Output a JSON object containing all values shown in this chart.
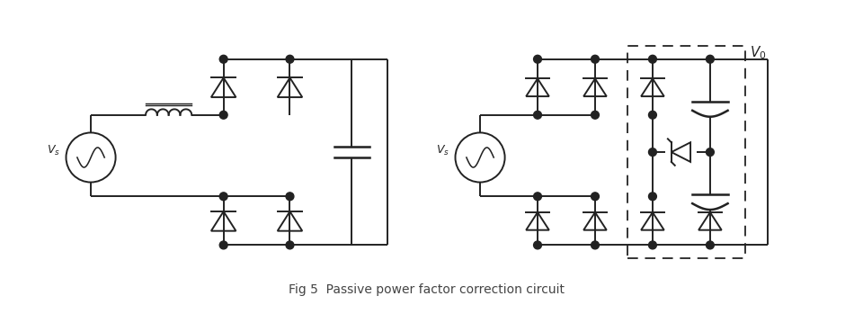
{
  "title": "Fig 5  Passive power factor correction circuit",
  "title_fontsize": 10,
  "title_color": "#444444",
  "bg_color": "#ffffff",
  "line_color": "#222222",
  "line_width": 1.4,
  "figsize": [
    9.5,
    3.49
  ],
  "dpi": 100
}
